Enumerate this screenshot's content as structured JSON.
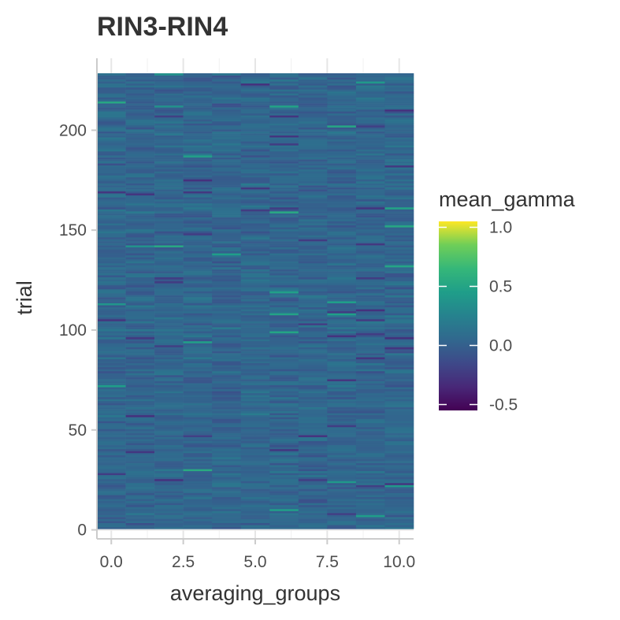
{
  "chart_data": {
    "type": "heatmap",
    "title": "RIN3-RIN4",
    "xlabel": "averaging_groups",
    "ylabel": "trial",
    "x_ticks": [
      0.0,
      2.5,
      5.0,
      7.5,
      10.0
    ],
    "x_tick_labels": [
      "0.0",
      "2.5",
      "5.0",
      "7.5",
      "10.0"
    ],
    "y_ticks": [
      0,
      50,
      100,
      150,
      200
    ],
    "y_tick_labels": [
      "0",
      "50",
      "100",
      "150",
      "200"
    ],
    "xlim": [
      -0.5,
      10.5
    ],
    "ylim": [
      -4.5,
      236.0
    ],
    "x_values": [
      0,
      1,
      2,
      3,
      4,
      5,
      6,
      7,
      8,
      9,
      10
    ],
    "y_values_range": [
      1,
      228
    ],
    "colorscale": "viridis",
    "legend": {
      "title": "mean_gamma",
      "placement": "right",
      "range": [
        -0.55,
        1.05
      ],
      "ticks": [
        -0.5,
        0.0,
        0.5,
        1.0
      ],
      "tick_labels": [
        "-0.5",
        "0.0",
        "0.5",
        "1.0"
      ]
    },
    "value_summary": "values mostly between -0.2 and 0.35 across all cells; scattered highs near 0.5",
    "grid": true
  }
}
